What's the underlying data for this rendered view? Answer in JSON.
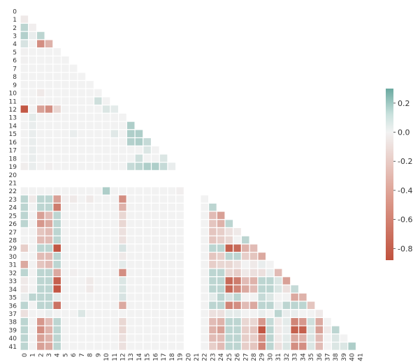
{
  "chart_data": {
    "type": "heatmap",
    "title": "",
    "xlabel": "",
    "ylabel": "",
    "mask": "upper-triangle-and-diagonal",
    "row_labels": [
      "0",
      "1",
      "2",
      "3",
      "4",
      "5",
      "6",
      "7",
      "8",
      "9",
      "10",
      "11",
      "12",
      "13",
      "14",
      "15",
      "16",
      "17",
      "18",
      "19",
      "20",
      "21",
      "22",
      "23",
      "24",
      "25",
      "26",
      "27",
      "28",
      "29",
      "30",
      "31",
      "32",
      "33",
      "34",
      "35",
      "36",
      "37",
      "38",
      "39",
      "40",
      "41"
    ],
    "col_labels": [
      "0",
      "1",
      "2",
      "3",
      "4",
      "5",
      "6",
      "7",
      "8",
      "9",
      "10",
      "11",
      "12",
      "13",
      "14",
      "15",
      "16",
      "17",
      "18",
      "19",
      "20",
      "21",
      "22",
      "23",
      "24",
      "25",
      "26",
      "27",
      "28",
      "29",
      "30",
      "31",
      "32",
      "33",
      "34",
      "35",
      "36",
      "37",
      "38",
      "39",
      "40",
      "41"
    ],
    "empty_rows_cols": [
      "20",
      "21"
    ],
    "color_range": [
      -0.88,
      0.3
    ],
    "colors": {
      "negative": "#c0523e",
      "zero": "#f2f2f2",
      "positive": "#6aa9a0"
    },
    "colorbar": {
      "ticks": [
        "0.2",
        "0.0",
        "-0.2",
        "-0.4",
        "-0.6",
        "-0.8"
      ],
      "tick_values": [
        0.2,
        0.0,
        -0.2,
        -0.4,
        -0.6,
        -0.8
      ]
    },
    "values": [
      [],
      [
        -0.05
      ],
      [
        0.12,
        -0.02
      ],
      [
        0.14,
        0.02,
        0.12
      ],
      [
        0.06,
        0.0,
        -0.55,
        -0.35
      ],
      [
        -0.01,
        0,
        0,
        0,
        0
      ],
      [
        -0.01,
        0,
        0,
        0,
        0,
        0
      ],
      [
        0,
        0,
        0,
        0,
        0,
        0,
        0
      ],
      [
        0,
        0,
        0,
        0,
        0,
        0,
        0,
        0
      ],
      [
        0,
        0,
        0,
        0,
        0,
        0,
        0,
        0,
        0
      ],
      [
        0,
        0,
        -0.05,
        0,
        0,
        0,
        0,
        0,
        0,
        0
      ],
      [
        0,
        0,
        0,
        0,
        0,
        0,
        0,
        0,
        0,
        0.08,
        0
      ],
      [
        -0.85,
        0,
        -0.45,
        -0.55,
        -0.15,
        0,
        0,
        0,
        0,
        0,
        0.05,
        0.03
      ],
      [
        0,
        0.03,
        0,
        0,
        0,
        0,
        0,
        0,
        0,
        0,
        0,
        0,
        0
      ],
      [
        0,
        0.02,
        0,
        0,
        0,
        0,
        0,
        0,
        0,
        0,
        0,
        0,
        0,
        0.15
      ],
      [
        0,
        0.02,
        0,
        0,
        0,
        0,
        0.02,
        0,
        0,
        0,
        0,
        0.04,
        0,
        0.15,
        0.15
      ],
      [
        0,
        0.02,
        0,
        0,
        0,
        0,
        0,
        0,
        0,
        0,
        0,
        0,
        0,
        0.14,
        0.15,
        0.1
      ],
      [
        0,
        0.02,
        0,
        0,
        0,
        0,
        0,
        0,
        0,
        0,
        0,
        0,
        0,
        0,
        0,
        0.05,
        0
      ],
      [
        0,
        0.02,
        0,
        0,
        0,
        0,
        0,
        0,
        0,
        0,
        0,
        0,
        0,
        0,
        0.08,
        0,
        0,
        0.05
      ],
      [
        -0.03,
        0.02,
        0,
        -0.02,
        0,
        0,
        0,
        0,
        0,
        0,
        0,
        0,
        0,
        0.1,
        0.12,
        0.15,
        0.15,
        0.1,
        0.02
      ],
      [],
      [],
      [
        0,
        0,
        0,
        0,
        0,
        0,
        0,
        0,
        0,
        0,
        0.15,
        0,
        0,
        0,
        0,
        0,
        0,
        0,
        0,
        -0.02,
        null,
        null
      ],
      [
        0.12,
        -0.05,
        0.12,
        0.12,
        -0.45,
        -0.02,
        -0.05,
        0,
        -0.05,
        0,
        0,
        0,
        -0.55,
        0,
        0,
        0,
        0,
        0,
        0,
        0,
        null,
        null,
        0
      ],
      [
        0.12,
        0,
        0.12,
        0.12,
        -0.65,
        0,
        0,
        0,
        0,
        0,
        0,
        0,
        -0.35,
        0,
        0,
        0,
        0,
        0,
        0,
        0,
        null,
        null,
        0,
        0.12
      ],
      [
        0.12,
        0,
        -0.45,
        -0.3,
        0.12,
        0,
        0,
        0,
        0,
        0,
        0,
        0,
        -0.15,
        0,
        0,
        0,
        0,
        0,
        0,
        0,
        null,
        null,
        0,
        -0.3,
        -0.45
      ],
      [
        0.12,
        0,
        -0.5,
        -0.4,
        0.12,
        0,
        0,
        0,
        0,
        0,
        0,
        0,
        -0.15,
        0,
        0,
        0,
        0,
        0,
        0,
        0,
        null,
        null,
        0,
        -0.25,
        -0.35,
        0.12
      ],
      [
        0,
        0,
        -0.25,
        -0.3,
        0.12,
        0,
        0,
        0,
        0,
        0,
        0,
        0,
        -0.1,
        0,
        0,
        0,
        0,
        0,
        0,
        0,
        null,
        null,
        0,
        -0.25,
        -0.2,
        -0.1,
        -0.05
      ],
      [
        0,
        0,
        -0.3,
        -0.3,
        0.12,
        0,
        0,
        0,
        0,
        0,
        0,
        0,
        -0.1,
        0,
        0,
        0,
        0,
        0,
        0,
        0,
        null,
        null,
        0,
        -0.25,
        -0.2,
        -0.15,
        0,
        0.12
      ],
      [
        -0.2,
        0,
        0.12,
        0.12,
        -0.85,
        0,
        0,
        0,
        0,
        0,
        0,
        0,
        0.06,
        0,
        0,
        0,
        0,
        0,
        0,
        0,
        null,
        null,
        0,
        0.12,
        0.12,
        -0.8,
        -0.75,
        -0.35,
        -0.3
      ],
      [
        0,
        0,
        -0.3,
        -0.3,
        0.12,
        0,
        0,
        0,
        0,
        0,
        0,
        0,
        -0.05,
        0,
        0,
        0,
        0,
        0,
        0,
        0,
        null,
        null,
        0,
        -0.25,
        -0.2,
        0.12,
        0.12,
        -0.2,
        -0.25,
        -0.4
      ],
      [
        -0.4,
        0,
        -0.25,
        -0.3,
        0.12,
        0,
        0,
        0,
        0,
        0,
        0,
        0,
        0.03,
        0,
        0,
        0,
        0,
        0,
        0,
        0,
        null,
        null,
        0,
        -0.2,
        -0.15,
        -0.15,
        -0.1,
        0,
        -0.05,
        0.02,
        0
      ],
      [
        0.12,
        0,
        0.12,
        0.12,
        -0.4,
        0,
        -0.02,
        0,
        0,
        0,
        0,
        0,
        -0.55,
        0,
        0,
        0,
        0,
        0,
        0,
        0,
        null,
        null,
        0,
        0.12,
        0.12,
        -0.15,
        -0.2,
        -0.05,
        -0.1,
        -0.1,
        0.02,
        -0.3
      ],
      [
        -0.05,
        0,
        0.12,
        0.12,
        -0.8,
        0,
        0,
        0,
        -0.05,
        0,
        0,
        0,
        0.05,
        0,
        0,
        0,
        0,
        0,
        0,
        0,
        null,
        null,
        0,
        0.12,
        0.12,
        -0.75,
        -0.65,
        -0.3,
        -0.35,
        0.12,
        0.12,
        0.05,
        -0.45
      ],
      [
        -0.05,
        0,
        0.12,
        0.12,
        -0.85,
        0,
        0,
        0,
        -0.05,
        0,
        0,
        0,
        0.05,
        0,
        0,
        0,
        0,
        0,
        0,
        0,
        null,
        null,
        0,
        0.12,
        0.12,
        -0.75,
        -0.6,
        -0.4,
        -0.3,
        0.12,
        0.12,
        0.05,
        -0.1,
        0.1
      ],
      [
        0.02,
        0.12,
        0.12,
        0.12,
        0.03,
        0,
        0,
        0,
        0,
        0,
        0,
        0,
        0.06,
        0,
        0,
        0,
        0,
        0,
        0,
        0,
        null,
        null,
        0,
        0.03,
        0.12,
        0.06,
        0.12,
        0,
        0,
        0.1,
        0.05,
        0,
        0,
        -0.4,
        -0.35
      ],
      [
        0.12,
        0,
        0.12,
        0.12,
        -0.7,
        0,
        0,
        0,
        0,
        0,
        0,
        0,
        -0.4,
        0,
        0,
        0,
        0,
        0,
        0,
        0,
        null,
        null,
        0,
        0.12,
        0.12,
        -0.6,
        -0.55,
        -0.3,
        -0.4,
        0.12,
        0.12,
        0.02,
        0.12,
        0.12,
        0.12,
        -0.25
      ],
      [
        -0.1,
        0,
        0,
        0.02,
        0,
        0,
        0,
        0.05,
        0,
        0,
        0,
        0,
        0,
        0,
        0,
        0,
        0,
        0,
        0,
        0,
        null,
        null,
        0,
        -0.1,
        -0.1,
        0.03,
        0.03,
        0,
        0,
        0.02,
        0,
        0.12,
        0.02,
        0.02,
        0,
        0,
        -0.05
      ],
      [
        0.12,
        0,
        -0.5,
        -0.3,
        0.12,
        0,
        0,
        0,
        0,
        0,
        0,
        0,
        -0.15,
        0,
        0,
        0,
        0,
        0,
        0,
        0,
        null,
        null,
        0,
        -0.3,
        -0.35,
        0.12,
        0.12,
        -0.15,
        -0.15,
        -0.5,
        0.1,
        -0.05,
        0.03,
        -0.6,
        -0.5,
        0.08,
        -0.4,
        0
      ],
      [
        0.12,
        0,
        -0.55,
        -0.35,
        0.12,
        0,
        0,
        0,
        0,
        0,
        0,
        0,
        -0.15,
        0,
        0,
        0,
        0,
        0,
        0,
        0,
        null,
        null,
        0,
        -0.35,
        -0.45,
        0.12,
        0.12,
        -0.2,
        -0.25,
        -0.85,
        0.12,
        -0.05,
        0.02,
        -0.8,
        -0.8,
        0.05,
        -0.45,
        -0.05,
        0.12
      ],
      [
        0.12,
        0,
        -0.45,
        -0.35,
        0.12,
        0,
        0,
        0,
        0,
        0,
        0,
        0,
        -0.1,
        0,
        0,
        0,
        0,
        0,
        0,
        0,
        null,
        null,
        0,
        -0.3,
        -0.3,
        0.12,
        0.12,
        -0.2,
        -0.2,
        -0.55,
        0.12,
        -0.05,
        0.03,
        -0.4,
        -0.35,
        0.05,
        -0.3,
        0,
        0.05,
        0
      ],
      [
        0.12,
        0,
        -0.45,
        -0.4,
        0.12,
        0,
        0,
        0,
        0,
        0,
        0,
        0,
        -0.1,
        0,
        0,
        0,
        0,
        0,
        0,
        0,
        null,
        null,
        0,
        -0.2,
        -0.3,
        0.12,
        0.12,
        -0.2,
        -0.25,
        -0.6,
        0.12,
        -0.1,
        0.05,
        -0.55,
        -0.55,
        0.05,
        -0.3,
        0,
        0.05,
        0.05,
        0.15
      ]
    ]
  }
}
